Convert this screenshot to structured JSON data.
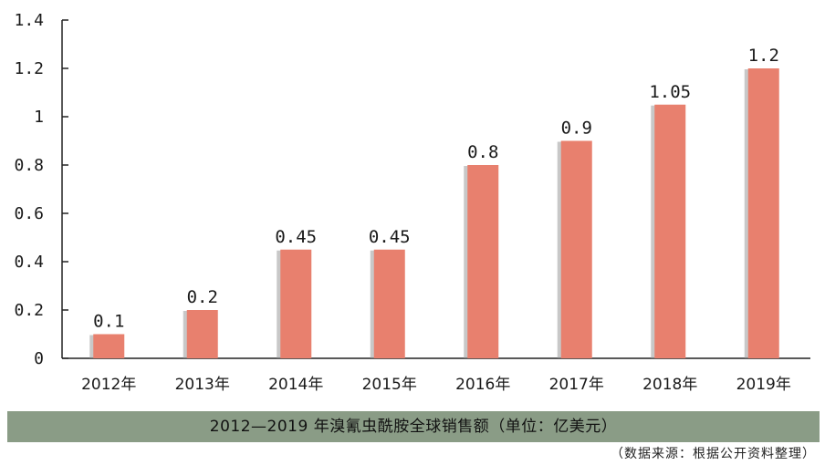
{
  "chart_data": {
    "type": "bar",
    "categories": [
      "2012年",
      "2013年",
      "2014年",
      "2015年",
      "2016年",
      "2017年",
      "2018年",
      "2019年"
    ],
    "values": [
      0.1,
      0.2,
      0.45,
      0.45,
      0.8,
      0.9,
      1.05,
      1.2
    ],
    "value_labels": [
      "0.1",
      "0.2",
      "0.45",
      "0.45",
      "0.8",
      "0.9",
      "1.05",
      "1.2"
    ],
    "y_ticks": [
      "0",
      "0.2",
      "0.4",
      "0.6",
      "0.8",
      "1",
      "1.2",
      "1.4"
    ],
    "ylim": [
      0,
      1.4
    ],
    "bar_color": "#e8806e",
    "grid": false,
    "title": "2012—2019 年溴氰虫酰胺全球销售额（单位：亿美元）",
    "xlabel": "",
    "ylabel": ""
  },
  "caption": "2012—2019 年溴氰虫酰胺全球销售额（单位：亿美元）",
  "source_note": "（数据来源：根据公开资料整理）",
  "colors": {
    "caption_band": "#8a9c86",
    "bar": "#e8806e"
  }
}
